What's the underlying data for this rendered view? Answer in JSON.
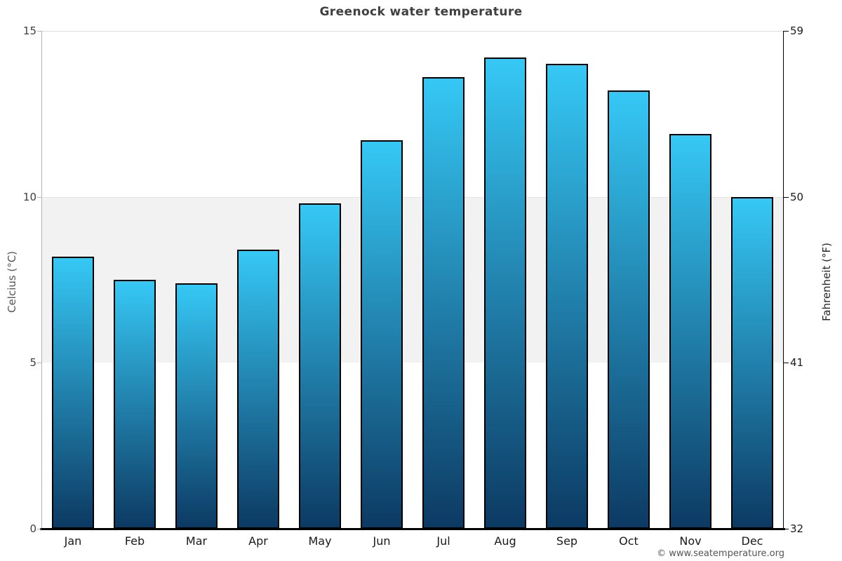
{
  "title": "Greenock water temperature",
  "watermark": "© www.seatemperature.org",
  "chart_data": {
    "type": "bar",
    "title": "Greenock water temperature",
    "categories": [
      "Jan",
      "Feb",
      "Mar",
      "Apr",
      "May",
      "Jun",
      "Jul",
      "Aug",
      "Sep",
      "Oct",
      "Nov",
      "Dec"
    ],
    "values": [
      8.2,
      7.5,
      7.4,
      8.4,
      9.8,
      11.7,
      13.6,
      14.2,
      14.0,
      13.2,
      11.9,
      10.0
    ],
    "unit": "°C",
    "ylabel_left": "Celcius (°C)",
    "ylabel_right": "Fahrenheit (°F)",
    "ylim_celsius": [
      0,
      15
    ],
    "yticks_left": [
      15,
      10,
      5,
      0
    ],
    "yticks_right": [
      59,
      50,
      41,
      32
    ],
    "shaded_band_celsius": [
      5,
      10
    ],
    "legend_position": "none",
    "grid": "top gridline at 15°C plus shaded band 5–10°C",
    "colors": {
      "bar_gradient_top": "#36c8f5",
      "bar_gradient_bottom": "#0c3a63",
      "bar_border": "#000000",
      "band_fill": "#f2f2f2",
      "left_axis_line": "#b3b3b3",
      "right_axis_line": "#000000",
      "baseline": "#000000",
      "title_text": "#404040"
    }
  }
}
